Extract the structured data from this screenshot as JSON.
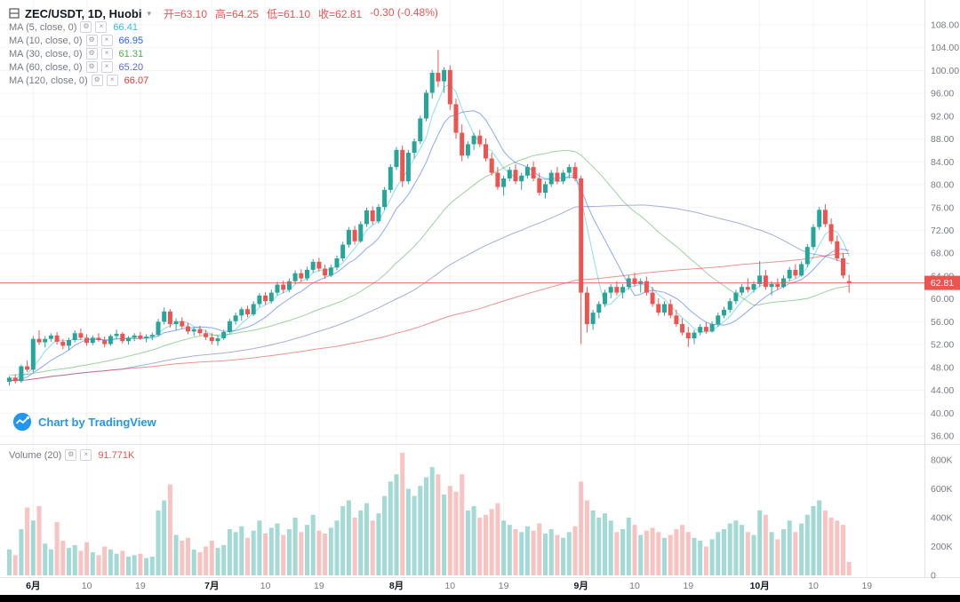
{
  "header": {
    "symbol_title": "ZEC/USDT, 1D, Huobi",
    "ohlc_items": [
      "开=63.10",
      "高=64.25",
      "低=61.10",
      "收=62.81",
      "-0.30 (-0.48%)"
    ]
  },
  "indicators": [
    {
      "label": "MA (5, close, 0)",
      "value": "66.41",
      "color": "#26c6da",
      "period": 5
    },
    {
      "label": "MA (10, close, 0)",
      "value": "66.95",
      "color": "#2962ff",
      "period": 10
    },
    {
      "label": "MA (30, close, 0)",
      "value": "61.31",
      "color": "#4caf50",
      "period": 30
    },
    {
      "label": "MA (60, close, 0)",
      "value": "65.20",
      "color": "#5c6bc0",
      "period": 60
    },
    {
      "label": "MA (120, close, 0)",
      "value": "66.07",
      "color": "#e53935",
      "period": 120
    }
  ],
  "volume_indicator": {
    "label": "Volume (20)",
    "value": "91.771K",
    "color": "#ef5350"
  },
  "attribution": {
    "text": "Chart by TradingView"
  },
  "price_axis": {
    "ticks": [
      "108.00",
      "104.00",
      "100.00",
      "96.00",
      "92.00",
      "88.00",
      "84.00",
      "80.00",
      "76.00",
      "72.00",
      "68.00",
      "64.00",
      "60.00",
      "56.00",
      "52.00",
      "48.00",
      "44.00",
      "40.00",
      "36.00"
    ],
    "last_price_label": "62.81"
  },
  "volume_axis": {
    "ticks": [
      {
        "v": 800,
        "label": "800K"
      },
      {
        "v": 600,
        "label": "600K"
      },
      {
        "v": 400,
        "label": "400K"
      },
      {
        "v": 200,
        "label": "200K"
      },
      {
        "v": 0,
        "label": "0"
      }
    ]
  },
  "time_axis": {
    "labels": [
      {
        "slot": 4,
        "text": "6月",
        "major": true
      },
      {
        "slot": 13,
        "text": "10",
        "major": false
      },
      {
        "slot": 22,
        "text": "19",
        "major": false
      },
      {
        "slot": 34,
        "text": "7月",
        "major": true
      },
      {
        "slot": 43,
        "text": "10",
        "major": false
      },
      {
        "slot": 52,
        "text": "19",
        "major": false
      },
      {
        "slot": 65,
        "text": "8月",
        "major": true
      },
      {
        "slot": 74,
        "text": "10",
        "major": false
      },
      {
        "slot": 83,
        "text": "19",
        "major": false
      },
      {
        "slot": 96,
        "text": "9月",
        "major": true
      },
      {
        "slot": 105,
        "text": "10",
        "major": false
      },
      {
        "slot": 114,
        "text": "19",
        "major": false
      },
      {
        "slot": 126,
        "text": "10月",
        "major": true
      },
      {
        "slot": 135,
        "text": "10",
        "major": false
      },
      {
        "slot": 144,
        "text": "19",
        "major": false
      }
    ]
  },
  "colors": {
    "up": "#26a69a",
    "down": "#ef5350",
    "vol_up": "rgba(38,166,154,0.42)",
    "vol_down": "rgba(239,83,80,0.35)",
    "grid": "rgba(42,46,57,0.05)",
    "border": "#e0e3eb",
    "axis_text": "#787b86",
    "time_major": "#131722",
    "last_price": "#ef5350",
    "accent_blue": "#2196f3"
  },
  "chart_data": {
    "type": "candlestick",
    "title": "ZEC/USDT, 1D, Huobi",
    "symbol": "ZEC/USDT",
    "interval": "1D",
    "exchange": "Huobi",
    "last_price": 62.81,
    "last_candle": {
      "open": 63.1,
      "high": 64.25,
      "low": 61.1,
      "close": 62.81,
      "change": -0.3,
      "change_pct": -0.48
    },
    "last_volume_k": 91.771,
    "price_range": [
      36,
      108
    ],
    "price_tick_step": 4,
    "volume_axis_max_k": 800,
    "ma_periods": [
      5,
      10,
      30,
      60,
      120
    ],
    "ma_values": {
      "ma5": 66.41,
      "ma10": 66.95,
      "ma30": 61.31,
      "ma60": 65.2,
      "ma120": 66.07
    },
    "ma_seed": [
      40.5,
      41,
      41.5,
      42,
      42.5,
      43,
      43.5,
      44,
      44.5,
      45,
      45.5,
      46,
      46.5,
      47,
      47.2,
      47.5,
      47.8,
      48,
      48.2,
      48.5,
      48.2,
      48,
      47.8,
      47.5,
      47.2,
      47,
      46.8,
      46.5,
      46.3,
      46,
      45.8,
      45.5,
      45.3,
      45.2,
      45.4,
      45.6,
      45.8,
      46,
      46.2,
      46.5
    ],
    "candles": [
      [
        45.5,
        46.5,
        44.8,
        46.2,
        180
      ],
      [
        46.2,
        46.8,
        45.2,
        45.6,
        140
      ],
      [
        45.6,
        48.5,
        45.3,
        48.2,
        320
      ],
      [
        48.2,
        49.2,
        47.2,
        47.6,
        470
      ],
      [
        47.6,
        53.5,
        47.2,
        53.0,
        380
      ],
      [
        53.0,
        54.5,
        52.0,
        52.4,
        480
      ],
      [
        52.4,
        53.5,
        51.5,
        53.0,
        220
      ],
      [
        53.0,
        54.0,
        52.5,
        53.6,
        180
      ],
      [
        53.6,
        54.2,
        52.0,
        52.5,
        370
      ],
      [
        52.5,
        53.0,
        51.2,
        51.8,
        240
      ],
      [
        51.8,
        53.2,
        51.0,
        52.8,
        190
      ],
      [
        52.8,
        54.5,
        52.4,
        54.0,
        210
      ],
      [
        54.0,
        54.8,
        52.8,
        53.2,
        170
      ],
      [
        53.2,
        53.8,
        51.8,
        52.3,
        230
      ],
      [
        52.3,
        53.6,
        51.9,
        53.2,
        160
      ],
      [
        53.2,
        54.0,
        52.5,
        52.8,
        140
      ],
      [
        52.8,
        53.4,
        51.5,
        52.1,
        200
      ],
      [
        52.1,
        53.8,
        51.8,
        53.5,
        180
      ],
      [
        53.5,
        54.6,
        53.0,
        53.9,
        150
      ],
      [
        53.9,
        54.2,
        52.2,
        52.6,
        170
      ],
      [
        52.6,
        53.5,
        52.0,
        53.2,
        130
      ],
      [
        53.2,
        54.0,
        52.6,
        53.6,
        140
      ],
      [
        53.6,
        54.2,
        52.8,
        53.1,
        150
      ],
      [
        53.1,
        53.8,
        52.4,
        53.4,
        120
      ],
      [
        53.4,
        54.1,
        52.8,
        53.7,
        130
      ],
      [
        53.7,
        56.5,
        53.4,
        56.0,
        450
      ],
      [
        56.0,
        58.5,
        55.5,
        57.8,
        520
      ],
      [
        57.8,
        58.2,
        55.0,
        55.6,
        630
      ],
      [
        55.6,
        56.6,
        54.5,
        56.1,
        280
      ],
      [
        56.1,
        56.8,
        54.8,
        55.2,
        240
      ],
      [
        55.2,
        55.8,
        53.8,
        54.3,
        260
      ],
      [
        54.3,
        55.1,
        53.5,
        54.7,
        180
      ],
      [
        54.7,
        55.3,
        53.6,
        54.0,
        160
      ],
      [
        54.0,
        54.6,
        52.8,
        53.3,
        200
      ],
      [
        53.3,
        54.0,
        52.0,
        52.6,
        240
      ],
      [
        52.6,
        53.6,
        51.8,
        53.1,
        190
      ],
      [
        53.1,
        54.6,
        52.8,
        54.2,
        210
      ],
      [
        54.2,
        56.5,
        54.0,
        56.1,
        320
      ],
      [
        56.1,
        57.6,
        55.5,
        57.1,
        300
      ],
      [
        57.1,
        58.6,
        56.2,
        58.2,
        340
      ],
      [
        58.2,
        58.8,
        56.8,
        57.3,
        260
      ],
      [
        57.3,
        59.6,
        57.0,
        59.1,
        310
      ],
      [
        59.1,
        61.0,
        58.6,
        60.6,
        380
      ],
      [
        60.6,
        61.2,
        59.0,
        59.6,
        290
      ],
      [
        59.6,
        61.6,
        59.2,
        61.1,
        330
      ],
      [
        61.1,
        63.0,
        60.6,
        62.5,
        360
      ],
      [
        62.5,
        63.2,
        61.0,
        61.6,
        280
      ],
      [
        61.6,
        63.6,
        61.2,
        63.1,
        320
      ],
      [
        63.1,
        65.0,
        62.6,
        64.5,
        400
      ],
      [
        64.5,
        65.2,
        63.0,
        63.6,
        300
      ],
      [
        63.6,
        65.6,
        63.2,
        65.1,
        350
      ],
      [
        65.1,
        67.0,
        64.6,
        66.5,
        420
      ],
      [
        66.5,
        67.2,
        64.8,
        65.3,
        310
      ],
      [
        65.3,
        66.0,
        63.5,
        64.1,
        290
      ],
      [
        64.1,
        66.0,
        63.8,
        65.5,
        330
      ],
      [
        65.5,
        67.6,
        65.0,
        67.1,
        380
      ],
      [
        67.1,
        70.0,
        66.6,
        69.5,
        480
      ],
      [
        69.5,
        72.6,
        69.0,
        72.1,
        520
      ],
      [
        72.1,
        72.8,
        69.5,
        70.1,
        400
      ],
      [
        70.1,
        73.6,
        69.8,
        73.1,
        450
      ],
      [
        73.1,
        76.0,
        72.6,
        75.5,
        500
      ],
      [
        75.5,
        76.2,
        73.0,
        73.6,
        380
      ],
      [
        73.6,
        76.6,
        73.2,
        76.1,
        430
      ],
      [
        76.1,
        79.6,
        75.6,
        79.1,
        550
      ],
      [
        79.1,
        83.6,
        78.6,
        83.1,
        650
      ],
      [
        83.1,
        86.6,
        82.6,
        86.1,
        700
      ],
      [
        86.1,
        86.9,
        79.6,
        80.6,
        850
      ],
      [
        80.6,
        86.1,
        80.1,
        85.6,
        600
      ],
      [
        85.6,
        88.1,
        84.6,
        87.6,
        550
      ],
      [
        87.6,
        92.1,
        87.1,
        91.6,
        620
      ],
      [
        91.6,
        96.6,
        91.1,
        96.1,
        680
      ],
      [
        96.1,
        100.1,
        95.1,
        99.6,
        750
      ],
      [
        99.6,
        103.6,
        97.1,
        98.1,
        700
      ],
      [
        98.1,
        100.6,
        96.1,
        100.1,
        560
      ],
      [
        100.1,
        100.9,
        93.1,
        94.1,
        620
      ],
      [
        94.1,
        95.1,
        88.1,
        89.1,
        580
      ],
      [
        89.1,
        90.6,
        84.1,
        85.1,
        700
      ],
      [
        85.1,
        87.6,
        84.6,
        87.1,
        450
      ],
      [
        87.1,
        89.1,
        86.1,
        88.6,
        480
      ],
      [
        88.6,
        89.6,
        86.6,
        87.1,
        400
      ],
      [
        87.1,
        88.1,
        84.1,
        84.6,
        420
      ],
      [
        84.6,
        85.6,
        81.6,
        82.1,
        460
      ],
      [
        82.1,
        83.1,
        79.1,
        79.6,
        500
      ],
      [
        79.6,
        81.6,
        78.1,
        81.1,
        380
      ],
      [
        81.1,
        83.1,
        80.6,
        82.6,
        350
      ],
      [
        82.6,
        83.6,
        80.1,
        80.6,
        320
      ],
      [
        80.6,
        82.1,
        79.1,
        81.6,
        300
      ],
      [
        81.6,
        83.6,
        81.1,
        83.1,
        340
      ],
      [
        83.1,
        84.1,
        80.6,
        81.1,
        310
      ],
      [
        81.1,
        82.1,
        78.1,
        78.6,
        360
      ],
      [
        78.6,
        80.6,
        77.6,
        80.1,
        290
      ],
      [
        80.1,
        82.6,
        79.6,
        82.1,
        320
      ],
      [
        82.1,
        83.1,
        80.1,
        80.6,
        280
      ],
      [
        80.6,
        82.6,
        80.1,
        82.1,
        260
      ],
      [
        82.1,
        83.6,
        81.1,
        83.1,
        300
      ],
      [
        83.1,
        83.9,
        80.6,
        81.1,
        340
      ],
      [
        81.1,
        81.6,
        52.1,
        61.1,
        650
      ],
      [
        61.1,
        62.1,
        54.1,
        55.6,
        520
      ],
      [
        55.6,
        58.1,
        54.6,
        57.6,
        450
      ],
      [
        57.6,
        59.6,
        56.6,
        59.1,
        400
      ],
      [
        59.1,
        61.6,
        58.6,
        61.1,
        430
      ],
      [
        61.1,
        62.6,
        60.1,
        62.1,
        380
      ],
      [
        62.1,
        63.1,
        60.6,
        61.1,
        300
      ],
      [
        61.1,
        62.6,
        60.1,
        62.1,
        320
      ],
      [
        62.1,
        64.1,
        61.6,
        63.6,
        400
      ],
      [
        63.6,
        64.6,
        62.1,
        62.6,
        350
      ],
      [
        62.6,
        63.6,
        61.1,
        63.1,
        280
      ],
      [
        63.1,
        63.9,
        60.6,
        61.1,
        310
      ],
      [
        61.1,
        62.1,
        58.6,
        59.1,
        330
      ],
      [
        59.1,
        60.1,
        57.1,
        57.6,
        300
      ],
      [
        57.6,
        59.6,
        57.1,
        59.1,
        260
      ],
      [
        59.1,
        59.9,
        56.6,
        57.1,
        280
      ],
      [
        57.1,
        58.1,
        55.1,
        55.6,
        320
      ],
      [
        55.6,
        56.6,
        53.6,
        54.1,
        350
      ],
      [
        54.1,
        55.1,
        51.6,
        53.1,
        300
      ],
      [
        53.1,
        54.6,
        52.1,
        54.1,
        260
      ],
      [
        54.1,
        55.6,
        53.6,
        55.1,
        240
      ],
      [
        55.1,
        55.9,
        53.9,
        54.3,
        200
      ],
      [
        54.3,
        56.1,
        54.1,
        55.6,
        250
      ],
      [
        55.6,
        57.6,
        55.1,
        57.1,
        300
      ],
      [
        57.1,
        58.6,
        56.6,
        58.1,
        320
      ],
      [
        58.1,
        60.1,
        57.6,
        59.6,
        360
      ],
      [
        59.6,
        61.6,
        59.1,
        61.1,
        380
      ],
      [
        61.1,
        62.6,
        60.6,
        62.1,
        350
      ],
      [
        62.1,
        63.6,
        61.1,
        61.6,
        300
      ],
      [
        61.6,
        63.1,
        61.1,
        62.6,
        280
      ],
      [
        62.6,
        66.6,
        62.1,
        64.1,
        450
      ],
      [
        64.1,
        65.1,
        61.6,
        62.1,
        420
      ],
      [
        62.1,
        63.1,
        60.6,
        62.6,
        300
      ],
      [
        62.6,
        63.6,
        61.6,
        62.1,
        250
      ],
      [
        62.1,
        64.1,
        61.9,
        63.6,
        320
      ],
      [
        63.6,
        65.6,
        63.1,
        65.1,
        380
      ],
      [
        65.1,
        66.1,
        63.6,
        64.1,
        300
      ],
      [
        64.1,
        66.6,
        63.9,
        66.1,
        360
      ],
      [
        66.1,
        69.6,
        65.6,
        69.1,
        420
      ],
      [
        69.1,
        73.1,
        68.6,
        72.6,
        480
      ],
      [
        72.6,
        76.1,
        72.1,
        75.6,
        520
      ],
      [
        75.6,
        76.6,
        72.6,
        73.1,
        450
      ],
      [
        73.1,
        74.1,
        69.6,
        70.1,
        400
      ],
      [
        70.1,
        71.1,
        66.6,
        67.1,
        380
      ],
      [
        67.1,
        68.1,
        63.6,
        64.1,
        350
      ],
      [
        63.1,
        64.25,
        61.1,
        62.81,
        92
      ]
    ]
  }
}
